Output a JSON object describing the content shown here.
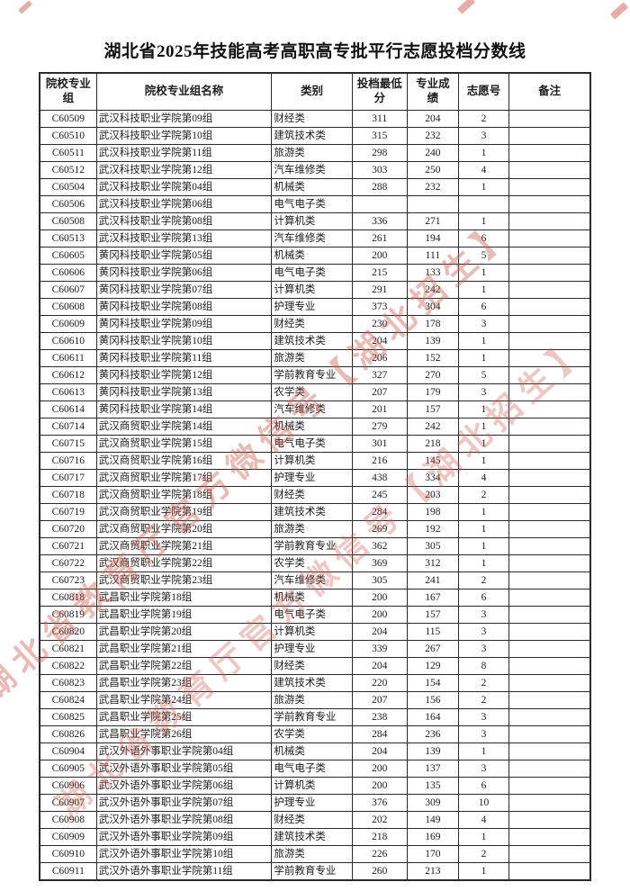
{
  "page": {
    "title": "湖北省2025年技能高考高职高专批平行志愿投档分数线"
  },
  "watermark": {
    "text": "湖北省教育厅官方微信号【湖北招生】",
    "color": "#cd5a4c"
  },
  "table": {
    "headers": {
      "group_code": "院校专业组",
      "group_name": "院校专业组名称",
      "category": "类别",
      "min_score": "投档最低分",
      "major_score": "专业成绩",
      "choice_no": "志愿号",
      "remark": "备注"
    },
    "rows": [
      {
        "code": "C60509",
        "name": "武汉科技职业学院第09组",
        "category": "财经类",
        "min": "311",
        "score": "204",
        "choice": "2",
        "remark": ""
      },
      {
        "code": "C60510",
        "name": "武汉科技职业学院第10组",
        "category": "建筑技术类",
        "min": "315",
        "score": "232",
        "choice": "3",
        "remark": ""
      },
      {
        "code": "C60511",
        "name": "武汉科技职业学院第11组",
        "category": "旅游类",
        "min": "298",
        "score": "240",
        "choice": "1",
        "remark": ""
      },
      {
        "code": "C60512",
        "name": "武汉科技职业学院第12组",
        "category": "汽车维修类",
        "min": "303",
        "score": "250",
        "choice": "4",
        "remark": ""
      },
      {
        "code": "C60504",
        "name": "武汉科技职业学院第04组",
        "category": "机械类",
        "min": "288",
        "score": "232",
        "choice": "1",
        "remark": ""
      },
      {
        "code": "C60506",
        "name": "武汉科技职业学院第06组",
        "category": "电气电子类",
        "min": "",
        "score": "",
        "choice": "",
        "remark": ""
      },
      {
        "code": "C60508",
        "name": "武汉科技职业学院第08组",
        "category": "计算机类",
        "min": "336",
        "score": "271",
        "choice": "1",
        "remark": ""
      },
      {
        "code": "C60513",
        "name": "武汉科技职业学院第13组",
        "category": "汽车维修类",
        "min": "261",
        "score": "194",
        "choice": "6",
        "remark": ""
      },
      {
        "code": "C60605",
        "name": "黄冈科技职业学院第05组",
        "category": "机械类",
        "min": "200",
        "score": "111",
        "choice": "5",
        "remark": ""
      },
      {
        "code": "C60606",
        "name": "黄冈科技职业学院第06组",
        "category": "电气电子类",
        "min": "215",
        "score": "133",
        "choice": "1",
        "remark": ""
      },
      {
        "code": "C60607",
        "name": "黄冈科技职业学院第07组",
        "category": "计算机类",
        "min": "291",
        "score": "242",
        "choice": "1",
        "remark": ""
      },
      {
        "code": "C60608",
        "name": "黄冈科技职业学院第08组",
        "category": "护理专业",
        "min": "373",
        "score": "304",
        "choice": "6",
        "remark": ""
      },
      {
        "code": "C60609",
        "name": "黄冈科技职业学院第09组",
        "category": "财经类",
        "min": "230",
        "score": "178",
        "choice": "3",
        "remark": ""
      },
      {
        "code": "C60610",
        "name": "黄冈科技职业学院第10组",
        "category": "建筑技术类",
        "min": "204",
        "score": "139",
        "choice": "1",
        "remark": ""
      },
      {
        "code": "C60611",
        "name": "黄冈科技职业学院第11组",
        "category": "旅游类",
        "min": "206",
        "score": "152",
        "choice": "1",
        "remark": ""
      },
      {
        "code": "C60612",
        "name": "黄冈科技职业学院第12组",
        "category": "学前教育专业",
        "min": "327",
        "score": "270",
        "choice": "5",
        "remark": ""
      },
      {
        "code": "C60613",
        "name": "黄冈科技职业学院第13组",
        "category": "农学类",
        "min": "207",
        "score": "179",
        "choice": "3",
        "remark": ""
      },
      {
        "code": "C60614",
        "name": "黄冈科技职业学院第14组",
        "category": "汽车维修类",
        "min": "201",
        "score": "157",
        "choice": "1",
        "remark": ""
      },
      {
        "code": "C60714",
        "name": "武汉商贸职业学院第14组",
        "category": "机械类",
        "min": "279",
        "score": "242",
        "choice": "1",
        "remark": ""
      },
      {
        "code": "C60715",
        "name": "武汉商贸职业学院第15组",
        "category": "电气电子类",
        "min": "301",
        "score": "218",
        "choice": "1",
        "remark": ""
      },
      {
        "code": "C60716",
        "name": "武汉商贸职业学院第16组",
        "category": "计算机类",
        "min": "216",
        "score": "145",
        "choice": "1",
        "remark": ""
      },
      {
        "code": "C60717",
        "name": "武汉商贸职业学院第17组",
        "category": "护理专业",
        "min": "438",
        "score": "334",
        "choice": "4",
        "remark": ""
      },
      {
        "code": "C60718",
        "name": "武汉商贸职业学院第18组",
        "category": "财经类",
        "min": "245",
        "score": "203",
        "choice": "2",
        "remark": ""
      },
      {
        "code": "C60719",
        "name": "武汉商贸职业学院第19组",
        "category": "建筑技术类",
        "min": "284",
        "score": "198",
        "choice": "1",
        "remark": ""
      },
      {
        "code": "C60720",
        "name": "武汉商贸职业学院第20组",
        "category": "旅游类",
        "min": "269",
        "score": "192",
        "choice": "1",
        "remark": ""
      },
      {
        "code": "C60721",
        "name": "武汉商贸职业学院第21组",
        "category": "学前教育专业",
        "min": "362",
        "score": "305",
        "choice": "1",
        "remark": ""
      },
      {
        "code": "C60722",
        "name": "武汉商贸职业学院第22组",
        "category": "农学类",
        "min": "369",
        "score": "312",
        "choice": "1",
        "remark": ""
      },
      {
        "code": "C60723",
        "name": "武汉商贸职业学院第23组",
        "category": "汽车维修类",
        "min": "305",
        "score": "241",
        "choice": "2",
        "remark": ""
      },
      {
        "code": "C60818",
        "name": "武昌职业学院第18组",
        "category": "机械类",
        "min": "200",
        "score": "167",
        "choice": "6",
        "remark": ""
      },
      {
        "code": "C60819",
        "name": "武昌职业学院第19组",
        "category": "电气电子类",
        "min": "200",
        "score": "157",
        "choice": "3",
        "remark": ""
      },
      {
        "code": "C60820",
        "name": "武昌职业学院第20组",
        "category": "计算机类",
        "min": "204",
        "score": "115",
        "choice": "3",
        "remark": ""
      },
      {
        "code": "C60821",
        "name": "武昌职业学院第21组",
        "category": "护理专业",
        "min": "339",
        "score": "267",
        "choice": "3",
        "remark": ""
      },
      {
        "code": "C60822",
        "name": "武昌职业学院第22组",
        "category": "财经类",
        "min": "204",
        "score": "129",
        "choice": "8",
        "remark": ""
      },
      {
        "code": "C60823",
        "name": "武昌职业学院第23组",
        "category": "建筑技术类",
        "min": "220",
        "score": "154",
        "choice": "2",
        "remark": ""
      },
      {
        "code": "C60824",
        "name": "武昌职业学院第24组",
        "category": "旅游类",
        "min": "207",
        "score": "156",
        "choice": "2",
        "remark": ""
      },
      {
        "code": "C60825",
        "name": "武昌职业学院第25组",
        "category": "学前教育专业",
        "min": "238",
        "score": "164",
        "choice": "3",
        "remark": ""
      },
      {
        "code": "C60826",
        "name": "武昌职业学院第26组",
        "category": "农学类",
        "min": "284",
        "score": "236",
        "choice": "3",
        "remark": ""
      },
      {
        "code": "C60904",
        "name": "武汉外语外事职业学院第04组",
        "category": "机械类",
        "min": "204",
        "score": "139",
        "choice": "1",
        "remark": ""
      },
      {
        "code": "C60905",
        "name": "武汉外语外事职业学院第05组",
        "category": "电气电子类",
        "min": "200",
        "score": "137",
        "choice": "3",
        "remark": ""
      },
      {
        "code": "C60906",
        "name": "武汉外语外事职业学院第06组",
        "category": "计算机类",
        "min": "200",
        "score": "135",
        "choice": "6",
        "remark": ""
      },
      {
        "code": "C60907",
        "name": "武汉外语外事职业学院第07组",
        "category": "护理专业",
        "min": "376",
        "score": "309",
        "choice": "10",
        "remark": ""
      },
      {
        "code": "C60908",
        "name": "武汉外语外事职业学院第08组",
        "category": "财经类",
        "min": "202",
        "score": "149",
        "choice": "4",
        "remark": ""
      },
      {
        "code": "C60909",
        "name": "武汉外语外事职业学院第09组",
        "category": "建筑技术类",
        "min": "218",
        "score": "169",
        "choice": "1",
        "remark": ""
      },
      {
        "code": "C60910",
        "name": "武汉外语外事职业学院第10组",
        "category": "旅游类",
        "min": "226",
        "score": "170",
        "choice": "2",
        "remark": ""
      },
      {
        "code": "C60911",
        "name": "武汉外语外事职业学院第11组",
        "category": "学前教育专业",
        "min": "260",
        "score": "213",
        "choice": "1",
        "remark": ""
      }
    ]
  }
}
